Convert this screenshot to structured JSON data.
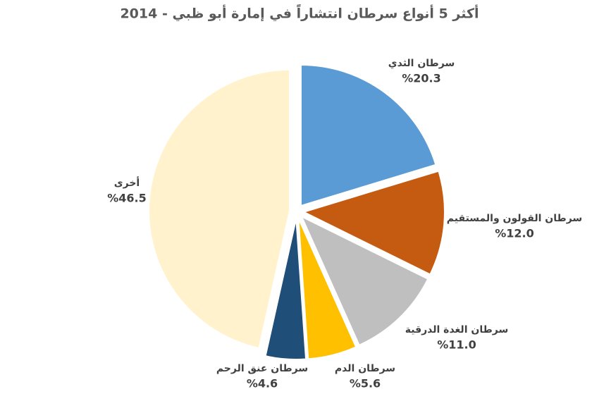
{
  "chart_data": {
    "type": "pie",
    "title": "أكثر 5 أنواع سرطان انتشاراً في إمارة أبو ظبي - 2014",
    "categories": [
      "سرطان الثدي",
      "سرطان القولون والمستقيم",
      "سرطان الغدة الدرقية",
      "سرطان الدم",
      "سرطان عنق الرحم",
      "أخرى"
    ],
    "values": [
      20.3,
      12.0,
      11.0,
      5.6,
      4.6,
      46.5
    ],
    "value_labels": [
      "%20.3",
      "%12.0",
      "%11.0",
      "%5.6",
      "%4.6",
      "%46.5"
    ],
    "colors": [
      "#5b9bd5",
      "#c55a11",
      "#bfbfbf",
      "#ffc000",
      "#1f4e79",
      "#fff2cc"
    ]
  }
}
